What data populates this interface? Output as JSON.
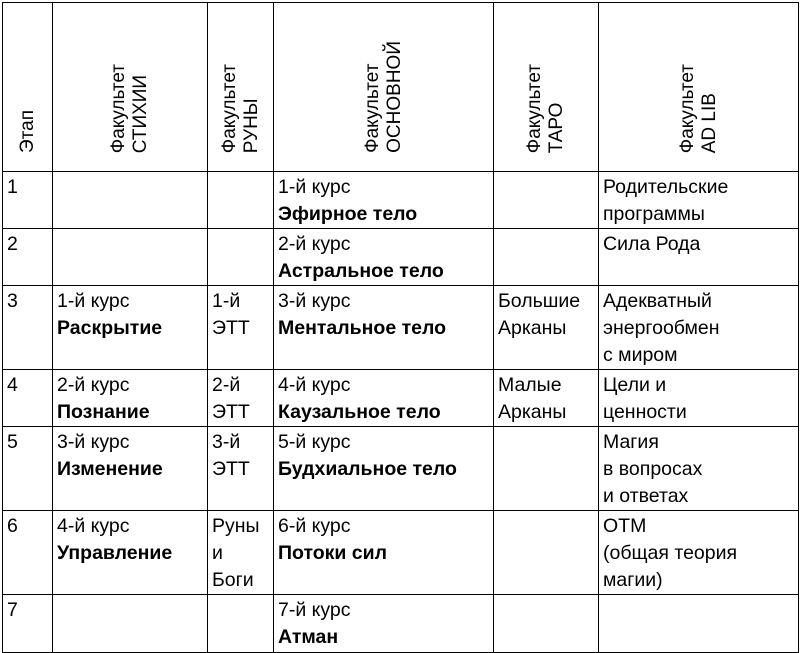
{
  "table": {
    "headers": [
      [
        "Этап"
      ],
      [
        "Факультет",
        "СТИХИИ"
      ],
      [
        "Факультет",
        "РУНЫ"
      ],
      [
        "Факультет",
        "ОСНОВНОЙ"
      ],
      [
        "Факультет",
        "ТАРО"
      ],
      [
        "Факультет",
        "AD LIB"
      ]
    ],
    "rows": [
      [
        {
          "lines": [
            "1"
          ]
        },
        null,
        null,
        {
          "lines": [
            "1-й курс"
          ],
          "bold": [
            "Эфирное тело"
          ]
        },
        null,
        {
          "lines": [
            "Родительские",
            "программы"
          ]
        }
      ],
      [
        {
          "lines": [
            "2"
          ]
        },
        null,
        null,
        {
          "lines": [
            "2-й курс"
          ],
          "bold": [
            "Астральное тело"
          ]
        },
        null,
        {
          "lines": [
            "Сила Рода"
          ]
        }
      ],
      [
        {
          "lines": [
            "3"
          ]
        },
        {
          "lines": [
            "1-й курс"
          ],
          "bold": [
            "Раскрытие"
          ]
        },
        {
          "lines": [
            "1-й",
            "ЭТТ"
          ]
        },
        {
          "lines": [
            "3-й курс"
          ],
          "bold": [
            "Ментальное тело"
          ]
        },
        {
          "lines": [
            "Большие",
            "Арканы"
          ]
        },
        {
          "lines": [
            "Адекватный",
            "энергообмен",
            "с миром"
          ]
        }
      ],
      [
        {
          "lines": [
            "4"
          ]
        },
        {
          "lines": [
            "2-й курс"
          ],
          "bold": [
            "Познание"
          ]
        },
        {
          "lines": [
            "2-й",
            "ЭТТ"
          ]
        },
        {
          "lines": [
            "4-й курс"
          ],
          "bold": [
            "Каузальное тело"
          ]
        },
        {
          "lines": [
            "Малые",
            "Арканы"
          ]
        },
        {
          "lines": [
            "Цели и",
            "ценности"
          ]
        }
      ],
      [
        {
          "lines": [
            "5"
          ]
        },
        {
          "lines": [
            "3-й курс"
          ],
          "bold": [
            "Изменение"
          ]
        },
        {
          "lines": [
            "3-й",
            "ЭТТ"
          ]
        },
        {
          "lines": [
            "5-й курс"
          ],
          "bold": [
            "Будхиальное тело"
          ]
        },
        null,
        {
          "lines": [
            "Магия",
            "в вопросах",
            "и ответах"
          ]
        }
      ],
      [
        {
          "lines": [
            "6"
          ]
        },
        {
          "lines": [
            "4-й курс"
          ],
          "bold": [
            "Управление"
          ]
        },
        {
          "lines": [
            "Руны",
            "и",
            "Боги"
          ]
        },
        {
          "lines": [
            "6-й курс"
          ],
          "bold": [
            "Потоки сил"
          ]
        },
        null,
        {
          "lines": [
            "ОТМ",
            "(общая теория",
            "магии)"
          ]
        }
      ],
      [
        {
          "lines": [
            "7"
          ]
        },
        null,
        null,
        {
          "lines": [
            "7-й курс"
          ],
          "bold": [
            "Атман"
          ]
        },
        null,
        null
      ]
    ]
  }
}
